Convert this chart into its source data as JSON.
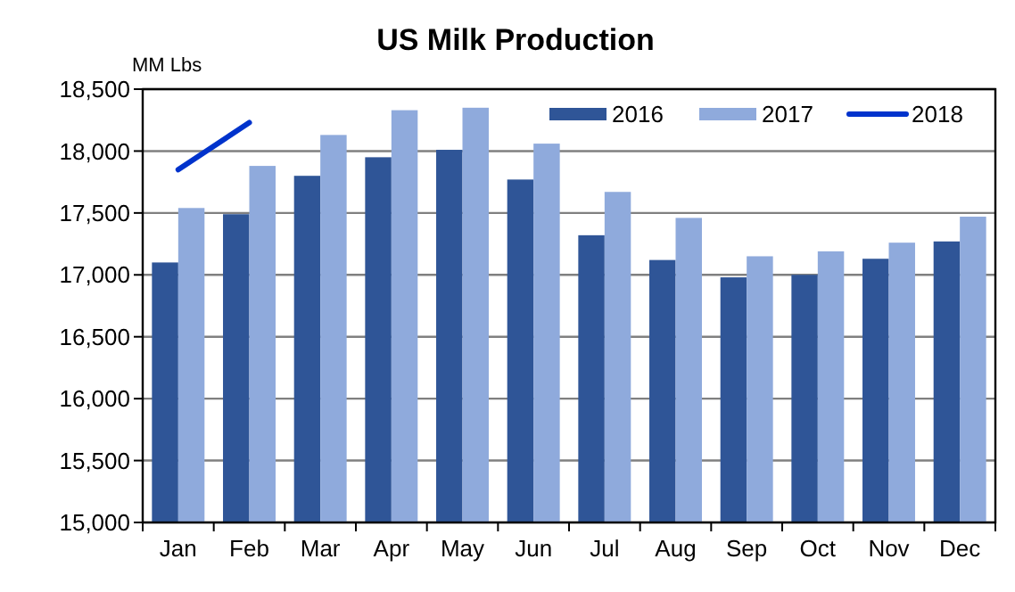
{
  "chart_data": {
    "type": "bar",
    "title": "US Milk Production",
    "ylabel": "MM Lbs",
    "categories": [
      "Jan",
      "Feb",
      "Mar",
      "Apr",
      "May",
      "Jun",
      "Jul",
      "Aug",
      "Sep",
      "Oct",
      "Nov",
      "Dec"
    ],
    "series": [
      {
        "name": "2016",
        "color": "#2f5597",
        "values": [
          17100,
          17490,
          17800,
          17950,
          18010,
          17770,
          17320,
          17120,
          16980,
          17000,
          17130,
          17270
        ]
      },
      {
        "name": "2017",
        "color": "#8faadc",
        "values": [
          17540,
          17880,
          18130,
          18330,
          18350,
          18060,
          17670,
          17460,
          17150,
          17190,
          17260,
          17470
        ]
      },
      {
        "name": "2018",
        "type": "line",
        "color": "#0033cc",
        "values": [
          17850,
          18230,
          null,
          null,
          null,
          null,
          null,
          null,
          null,
          null,
          null,
          null
        ]
      }
    ],
    "ylim": [
      15000,
      18500
    ],
    "yticks": [
      {
        "value": 15000,
        "label": "15,000"
      },
      {
        "value": 15500,
        "label": "15,500"
      },
      {
        "value": 16000,
        "label": "16,000"
      },
      {
        "value": 16500,
        "label": "16,500"
      },
      {
        "value": 17000,
        "label": "17,000"
      },
      {
        "value": 17500,
        "label": "17,500"
      },
      {
        "value": 18000,
        "label": "18,000"
      },
      {
        "value": 18500,
        "label": "18,500"
      }
    ],
    "grid": "y",
    "legend": "top right",
    "marker": "none",
    "line_style": "solid"
  }
}
